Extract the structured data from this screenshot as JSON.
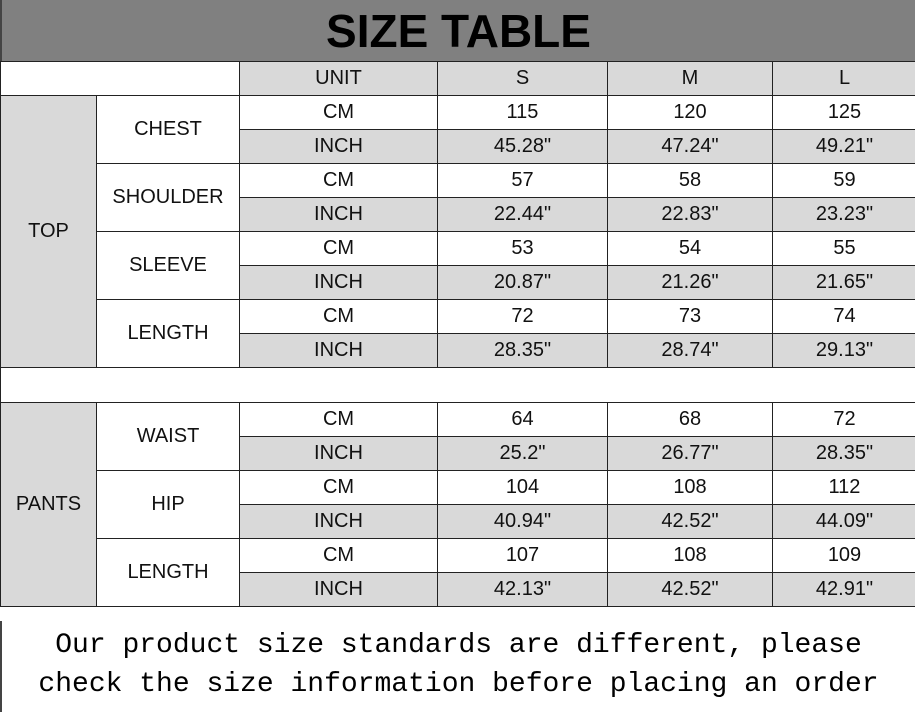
{
  "title": "SIZE TABLE",
  "header": {
    "blank": "",
    "unit": "UNIT",
    "sizes": [
      "S",
      "M",
      "L"
    ]
  },
  "sections": [
    {
      "label": "TOP",
      "measures": [
        {
          "name": "CHEST",
          "rows": [
            {
              "unit": "CM",
              "values": [
                "115",
                "120",
                "125"
              ]
            },
            {
              "unit": "INCH",
              "values": [
                "45.28\"",
                "47.24\"",
                "49.21\""
              ]
            }
          ]
        },
        {
          "name": "SHOULDER",
          "rows": [
            {
              "unit": "CM",
              "values": [
                "57",
                "58",
                "59"
              ]
            },
            {
              "unit": "INCH",
              "values": [
                "22.44\"",
                "22.83\"",
                "23.23\""
              ]
            }
          ]
        },
        {
          "name": "SLEEVE",
          "rows": [
            {
              "unit": "CM",
              "values": [
                "53",
                "54",
                "55"
              ]
            },
            {
              "unit": "INCH",
              "values": [
                "20.87\"",
                "21.26\"",
                "21.65\""
              ]
            }
          ]
        },
        {
          "name": "LENGTH",
          "rows": [
            {
              "unit": "CM",
              "values": [
                "72",
                "73",
                "74"
              ]
            },
            {
              "unit": "INCH",
              "values": [
                "28.35\"",
                "28.74\"",
                "29.13\""
              ]
            }
          ]
        }
      ]
    },
    {
      "label": "PANTS",
      "measures": [
        {
          "name": "WAIST",
          "rows": [
            {
              "unit": "CM",
              "values": [
                "64",
                "68",
                "72"
              ]
            },
            {
              "unit": "INCH",
              "values": [
                "25.2\"",
                "26.77\"",
                "28.35\""
              ]
            }
          ]
        },
        {
          "name": "HIP",
          "rows": [
            {
              "unit": "CM",
              "values": [
                "104",
                "108",
                "112"
              ]
            },
            {
              "unit": "INCH",
              "values": [
                "40.94\"",
                "42.52\"",
                "44.09\""
              ]
            }
          ]
        },
        {
          "name": "LENGTH",
          "rows": [
            {
              "unit": "CM",
              "values": [
                "107",
                "108",
                "109"
              ]
            },
            {
              "unit": "INCH",
              "values": [
                "42.13\"",
                "42.52\"",
                "42.91\""
              ]
            }
          ]
        }
      ]
    }
  ],
  "footer": {
    "line1": "Our product size standards are different, please",
    "line2": "check the size information before placing an order"
  },
  "colors": {
    "title_bg": "#808080",
    "shade": "#d9d9d9"
  }
}
